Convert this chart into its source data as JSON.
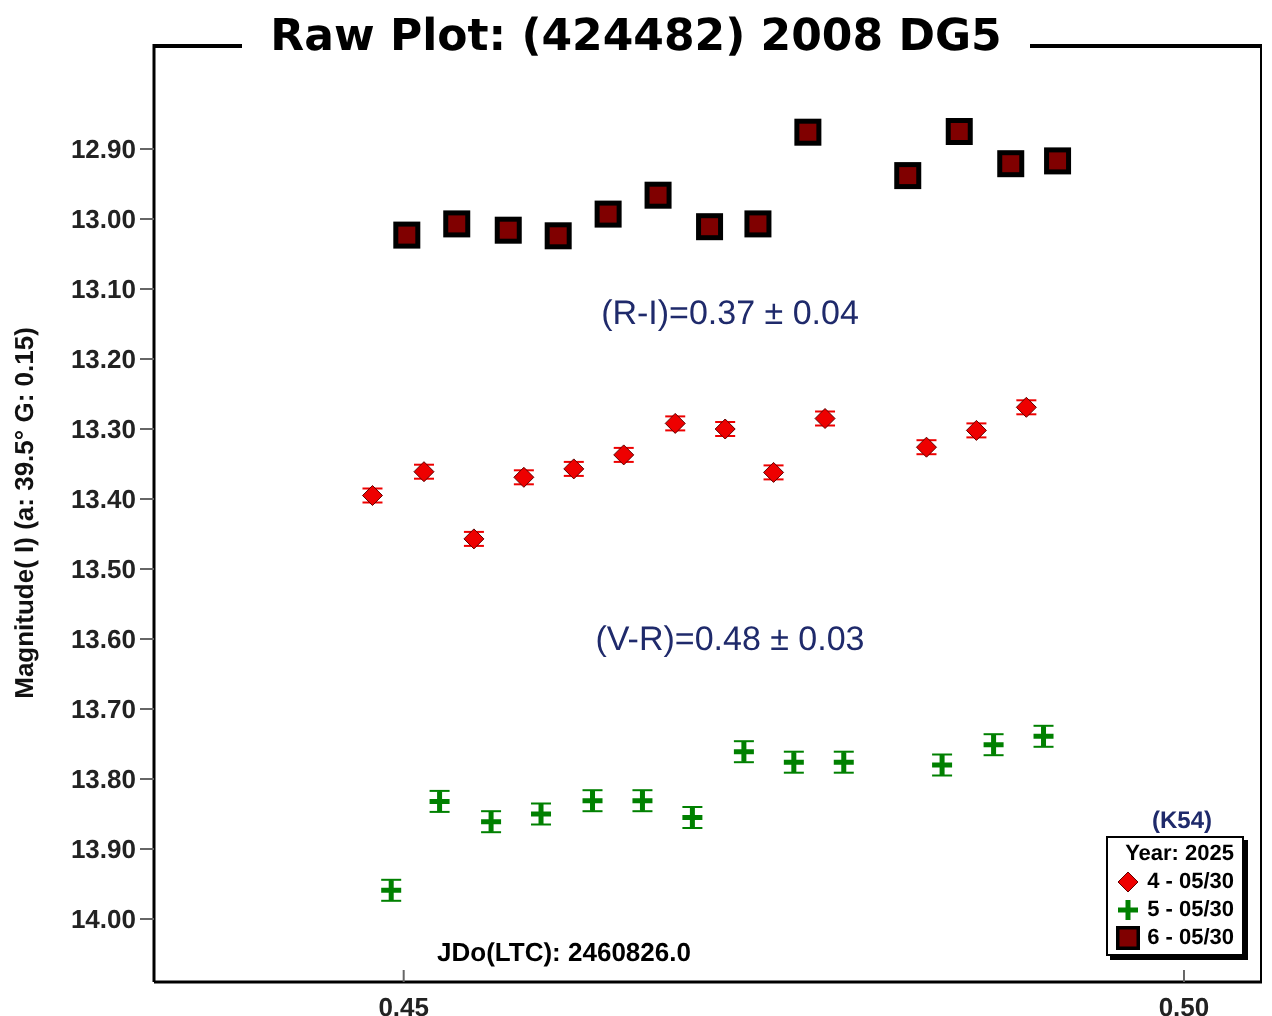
{
  "chart_data": {
    "type": "scatter",
    "title": "Raw Plot: (424482) 2008 DG5",
    "ylabel": "Magnitude( I)   (a: 39.5°  G: 0.15)",
    "legend_title": "Year: 2025",
    "annotations": [
      "(R-I)=0.37 ± 0.04",
      "(V-R)=0.48 ± 0.03",
      "JDo(LTC): 2460826.0",
      "(K54)"
    ],
    "xlim": [
      0.434,
      0.505
    ],
    "xticks": [
      0.45,
      {
        "value": 0.5,
        "label": "0.50"
      }
    ],
    "ylim": [
      14.09,
      12.75
    ],
    "yticks": [
      {
        "value": 12.9,
        "label": "12.90"
      },
      {
        "value": 13.0,
        "label": "13.00"
      },
      {
        "value": 13.1,
        "label": "13.10"
      },
      {
        "value": 13.2,
        "label": "13.20"
      },
      {
        "value": 13.3,
        "label": "13.30"
      },
      {
        "value": 13.4,
        "label": "13.40"
      },
      {
        "value": 13.5,
        "label": "13.50"
      },
      {
        "value": 13.6,
        "label": "13.60"
      },
      {
        "value": 13.7,
        "label": "13.70"
      },
      {
        "value": 13.8,
        "label": "13.80"
      },
      {
        "value": 13.9,
        "label": "13.90"
      },
      {
        "value": 14.0,
        "label": "14.00"
      }
    ],
    "grid": false,
    "legend": "bottom right",
    "series": [
      {
        "name": "4 - 05/30",
        "color": "#ee0000",
        "marker": "diamond",
        "x": [
          0.448,
          0.4513,
          0.4545,
          0.4577,
          0.4609,
          0.4641,
          0.4674,
          0.4706,
          0.4737,
          0.477,
          0.4835,
          0.4867,
          0.4899
        ],
        "values": [
          13.395,
          13.361,
          13.457,
          13.369,
          13.357,
          13.337,
          13.292,
          13.3,
          13.362,
          13.285,
          13.326,
          13.302,
          13.269
        ],
        "errors": [
          0.01,
          0.01,
          0.01,
          0.01,
          0.01,
          0.01,
          0.01,
          0.01,
          0.01,
          0.01,
          0.01,
          0.01,
          0.01
        ]
      },
      {
        "name": "5 - 05/30",
        "color": "#008000",
        "marker": "cross",
        "x": [
          0.4492,
          0.4523,
          0.4556,
          0.4588,
          0.4621,
          0.4653,
          0.4685,
          0.4718,
          0.475,
          0.4782,
          0.4845,
          0.4878,
          0.491
        ],
        "values": [
          13.959,
          13.832,
          13.861,
          13.85,
          13.831,
          13.831,
          13.855,
          13.761,
          13.776,
          13.776,
          13.78,
          13.751,
          13.739
        ],
        "errors": [
          0.015,
          0.015,
          0.015,
          0.015,
          0.015,
          0.015,
          0.015,
          0.015,
          0.015,
          0.015,
          0.015,
          0.015,
          0.015
        ]
      },
      {
        "name": "6 - 05/30",
        "color": "#800000",
        "marker": "square",
        "x": [
          0.4502,
          0.4534,
          0.4567,
          0.4599,
          0.4631,
          0.4663,
          0.4696,
          0.4727,
          0.4759,
          0.4823,
          0.4856,
          0.4889,
          0.4919
        ],
        "values": [
          13.023,
          13.007,
          13.016,
          13.024,
          12.993,
          12.966,
          13.011,
          13.007,
          12.876,
          12.938,
          12.875,
          12.921,
          12.917
        ],
        "errors": [
          0.01,
          0.01,
          0.01,
          0.01,
          0.01,
          0.01,
          0.01,
          0.01,
          0.01,
          0.01,
          0.01,
          0.01,
          0.01
        ]
      }
    ]
  }
}
